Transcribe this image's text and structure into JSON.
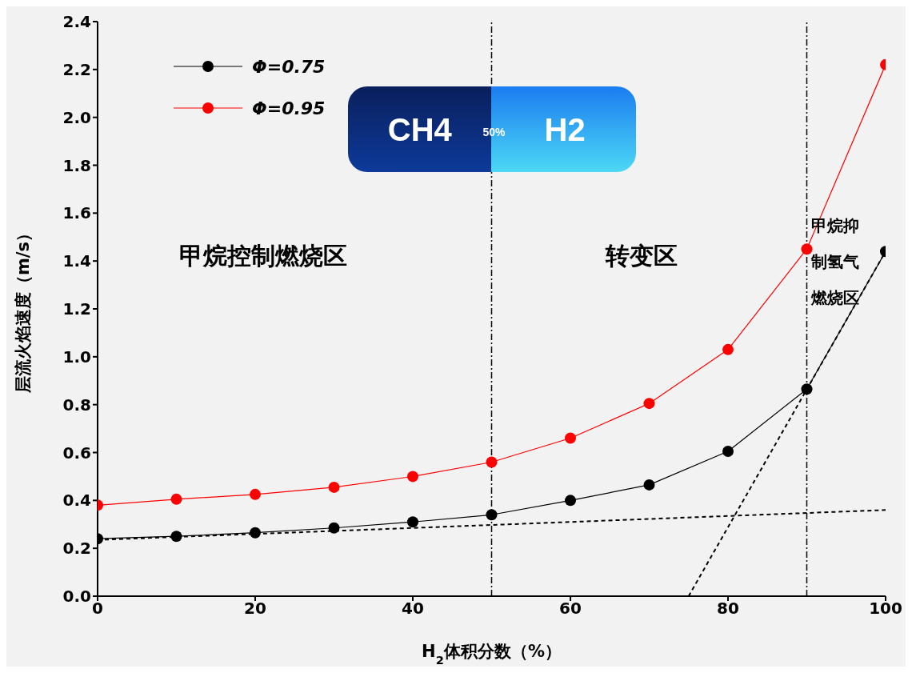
{
  "chart_data": {
    "type": "line",
    "xlabel": "H$_{2}$体积分数（%）",
    "ylabel": "层流火焰速度（m/s）",
    "x": [
      0,
      10,
      20,
      30,
      40,
      50,
      60,
      70,
      80,
      90,
      100
    ],
    "series": [
      {
        "name": "Φ=0.75",
        "color": "#000000",
        "values": [
          0.24,
          0.25,
          0.265,
          0.285,
          0.31,
          0.34,
          0.4,
          0.465,
          0.605,
          0.865,
          1.44
        ]
      },
      {
        "name": "Φ=0.95",
        "color": "#ff0000",
        "values": [
          0.38,
          0.405,
          0.425,
          0.455,
          0.5,
          0.56,
          0.66,
          0.805,
          1.03,
          1.45,
          2.22
        ]
      },
      {
        "color": "#000000",
        "x": [
          0,
          100
        ],
        "values": [
          0.235,
          0.36
        ],
        "marker": "none",
        "line_style": "dashed"
      },
      {
        "color": "#000000",
        "x": [
          75,
          100
        ],
        "values": [
          0,
          1.44
        ],
        "marker": "none",
        "line_style": "dashed"
      }
    ],
    "xlim": [
      0,
      100
    ],
    "xticks": [
      0,
      20,
      40,
      60,
      80,
      100
    ],
    "ylim": [
      0,
      2.4
    ],
    "yticks": [
      {
        "value": 0,
        "label": "0.0"
      },
      {
        "value": 0.2,
        "label": "0.2"
      },
      {
        "value": 0.4,
        "label": "0.4"
      },
      {
        "value": 0.6,
        "label": "0.6"
      },
      {
        "value": 0.8,
        "label": "0.8"
      },
      {
        "value": 1,
        "label": "1.0"
      },
      {
        "value": 1.2,
        "label": "1.2"
      },
      {
        "value": 1.4,
        "label": "1.4"
      },
      {
        "value": 1.6,
        "label": "1.6"
      },
      {
        "value": 1.8,
        "label": "1.8"
      },
      {
        "value": 2,
        "label": "2.0"
      },
      {
        "value": 2.2,
        "label": "2.2"
      },
      {
        "value": 2.4,
        "label": "2.4"
      }
    ],
    "ref_lines": [
      {
        "axis": "x",
        "value": 50,
        "color": "#000000",
        "line_style": "dashdot"
      },
      {
        "axis": "x",
        "value": 90,
        "color": "#000000",
        "line_style": "dashdot"
      }
    ],
    "annotations": [
      "甲烷控制燃烧区",
      "转变区",
      "甲烷抑制氢气燃烧区",
      "CH4",
      "50%",
      "H2"
    ],
    "legend": "top left",
    "marker": "circle",
    "line_style": "solid",
    "grid": false
  }
}
